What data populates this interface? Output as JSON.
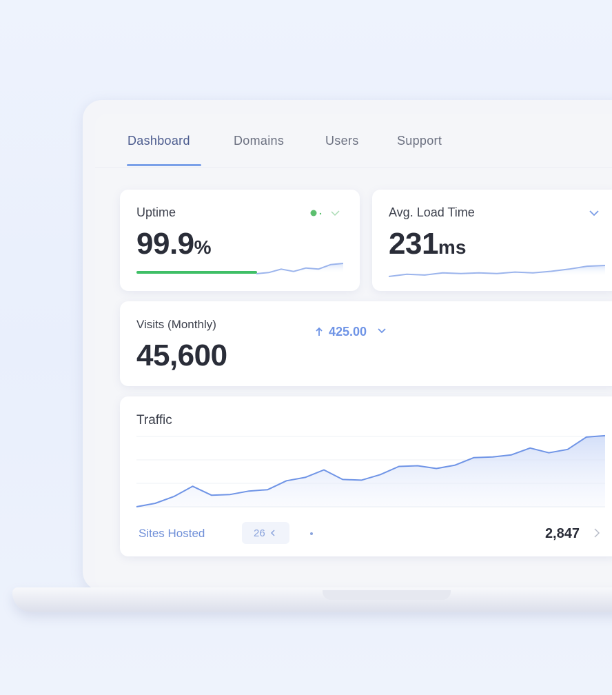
{
  "nav": {
    "tabs": [
      "Dashboard",
      "Domains",
      "Users",
      "Support"
    ]
  },
  "uptime": {
    "label": "Uptime",
    "value": "99.9",
    "unit": "%",
    "sparkline": {
      "values": [
        0,
        1,
        4,
        2,
        5,
        4,
        8,
        9
      ],
      "ylim": [
        0,
        12
      ],
      "color": "#9bb4ec"
    }
  },
  "load_time": {
    "label": "Avg. Load Time",
    "value": "231",
    "unit": "ms",
    "sparkline": {
      "values": [
        0,
        3,
        2,
        5,
        4,
        5,
        4,
        6,
        5,
        7,
        10,
        14,
        15
      ],
      "ylim": [
        0,
        30
      ],
      "color": "#9bb4ec"
    }
  },
  "visits": {
    "label": "Visits (Monthly)",
    "value": "45,600",
    "change": "425.00"
  },
  "traffic": {
    "chart_data": {
      "type": "line",
      "title": "Traffic",
      "values": [
        0,
        5,
        15,
        30,
        17,
        18,
        23,
        25,
        38,
        43,
        54,
        40,
        39,
        47,
        59,
        60,
        56,
        61,
        72,
        73,
        76,
        86,
        79,
        84,
        102,
        104
      ],
      "ylim": [
        0,
        110
      ],
      "color": "#6f94e6"
    }
  },
  "footer": {
    "label": "Sites Hosted",
    "chip": "26",
    "total": "2,847"
  }
}
